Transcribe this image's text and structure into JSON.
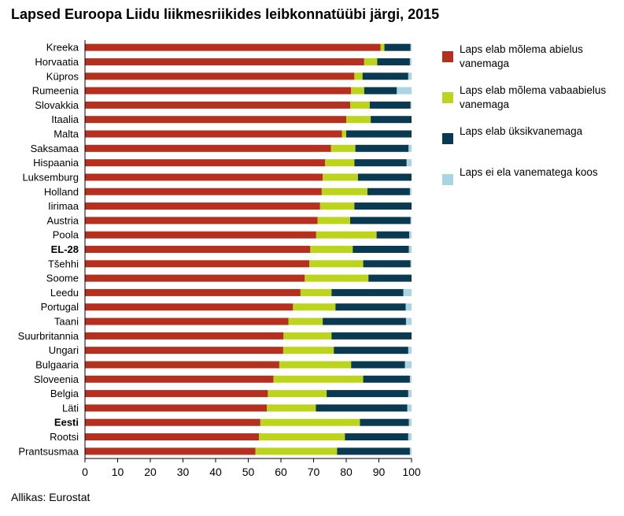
{
  "title": "Lapsed Euroopa Liidu liikmesriikides leibkonnatüübi järgi, 2015",
  "source": "Allikas: Eurostat",
  "colors": {
    "married": "#b5301f",
    "cohabiting": "#bcd41c",
    "single": "#0a3a52",
    "none": "#a9d4e4",
    "axis": "#000000",
    "grid": "#d9d9d9"
  },
  "legend": [
    {
      "key": "married",
      "label": "Laps elab mõlema abielus vanemaga"
    },
    {
      "key": "cohabiting",
      "label": "Laps elab mõlema vabaabielus vanemaga"
    },
    {
      "key": "single",
      "label": "Laps elab üksikvanemaga"
    },
    {
      "key": "none",
      "label": "Laps ei ela vanematega koos"
    }
  ],
  "chart_data": {
    "type": "bar",
    "orientation": "horizontal",
    "stacked": true,
    "title": "Lapsed Euroopa Liidu liikmesriikides leibkonnatüübi järgi, 2015",
    "xlabel": "",
    "ylabel": "",
    "xlim": [
      0,
      100
    ],
    "xticks": [
      0,
      10,
      20,
      30,
      40,
      50,
      60,
      70,
      80,
      90,
      100
    ],
    "grid": false,
    "legend_position": "right",
    "categories": [
      "Kreeka",
      "Horvaatia",
      "Küpros",
      "Rumeenia",
      "Slovakkia",
      "Itaalia",
      "Malta",
      "Saksamaa",
      "Hispaania",
      "Luksemburg",
      "Holland",
      "Iirimaa",
      "Austria",
      "Poola",
      "EL-28",
      "Tšehhi",
      "Soome",
      "Leedu",
      "Portugal",
      "Taani",
      "Suurbritannia",
      "Ungari",
      "Bulgaaria",
      "Sloveenia",
      "Belgia",
      "Läti",
      "Eesti",
      "Rootsi",
      "Prantsusmaa"
    ],
    "bold_categories": [
      "EL-28",
      "Eesti"
    ],
    "series": [
      {
        "name": "Laps elab mõlema abielus vanemaga",
        "color_key": "married",
        "values": [
          90.5,
          85.5,
          82.5,
          81.5,
          81.2,
          80.0,
          78.7,
          75.3,
          73.5,
          72.8,
          72.5,
          72.0,
          71.2,
          70.8,
          69.0,
          68.7,
          67.3,
          66.0,
          63.7,
          62.3,
          60.8,
          60.7,
          59.5,
          57.7,
          56.0,
          55.7,
          53.7,
          53.3,
          52.2
        ]
      },
      {
        "name": "Laps elab mõlema vabaabielus vanemaga",
        "color_key": "cohabiting",
        "values": [
          1.2,
          4.0,
          2.5,
          4.0,
          6.0,
          7.5,
          1.3,
          7.5,
          9.0,
          10.8,
          14.0,
          10.5,
          10.0,
          18.5,
          13.0,
          16.5,
          19.5,
          9.5,
          13.0,
          10.5,
          14.7,
          15.5,
          22.0,
          27.5,
          18.0,
          15.0,
          30.5,
          26.3,
          25.0
        ]
      },
      {
        "name": "Laps elab üksikvanemaga",
        "color_key": "single",
        "values": [
          8.0,
          10.0,
          14.0,
          10.0,
          12.5,
          12.5,
          20.0,
          16.3,
          16.0,
          16.4,
          13.0,
          17.5,
          18.5,
          10.0,
          17.2,
          14.5,
          13.2,
          22.0,
          21.5,
          25.5,
          24.5,
          22.8,
          16.5,
          14.3,
          25.0,
          28.0,
          15.0,
          19.4,
          22.3
        ]
      },
      {
        "name": "Laps ei ela vanematega koos",
        "color_key": "none",
        "values": [
          0.3,
          0.5,
          1.0,
          4.5,
          0.3,
          0.0,
          0.0,
          0.9,
          1.5,
          0.0,
          0.5,
          0.0,
          0.3,
          0.7,
          0.8,
          0.3,
          0.0,
          2.5,
          1.8,
          1.7,
          0.0,
          1.0,
          2.0,
          0.5,
          1.0,
          1.3,
          0.8,
          1.0,
          0.5
        ]
      }
    ]
  }
}
